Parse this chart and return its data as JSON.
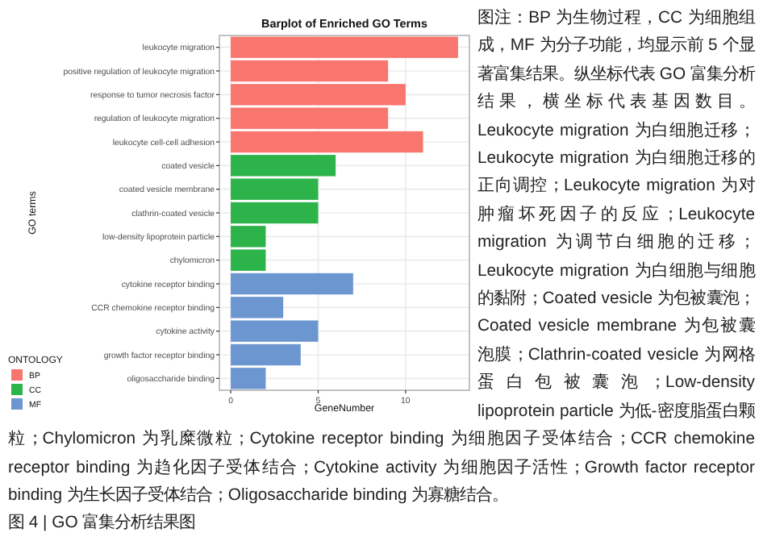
{
  "chart_data": {
    "type": "bar",
    "orientation": "horizontal",
    "title": "Barplot of Enriched GO Terms",
    "xlabel": "GeneNumber",
    "ylabel": "GO terms",
    "legend_title": "ONTOLOGY",
    "categories": [
      "leukocyte migration",
      "positive regulation of leukocyte migration",
      "response to tumor necrosis factor",
      "regulation of leukocyte migration",
      "leukocyte cell-cell adhesion",
      "coated vesicle",
      "coated vesicle membrane",
      "clathrin-coated vesicle",
      "low-density lipoprotein particle",
      "chylomicron",
      "cytokine receptor binding",
      "CCR chemokine receptor binding",
      "cytokine activity",
      "growth factor receptor binding",
      "oligosaccharide binding"
    ],
    "series": [
      {
        "name": "BP",
        "color": "#f8766d",
        "values": [
          13,
          9,
          10,
          9,
          11,
          null,
          null,
          null,
          null,
          null,
          null,
          null,
          null,
          null,
          null
        ]
      },
      {
        "name": "CC",
        "color": "#2cb34a",
        "values": [
          null,
          null,
          null,
          null,
          null,
          6,
          5,
          5,
          2,
          2,
          null,
          null,
          null,
          null,
          null
        ]
      },
      {
        "name": "MF",
        "color": "#6c96d0",
        "values": [
          null,
          null,
          null,
          null,
          null,
          null,
          null,
          null,
          null,
          null,
          7,
          3,
          5,
          4,
          2
        ]
      }
    ],
    "xlim": [
      -0.65,
      13.65
    ],
    "xticks": [
      0,
      5,
      10
    ],
    "grid": true,
    "legend": "bottom left",
    "annotations": [
      "图注：BP 为生物过程，CC 为细胞组成，MF 为分子功能，均显示前 5 个显著富集结果。纵坐标代表 GO 富集分析结果，横坐标代表基因数目。Leukocyte migration 为白细胞迁移；Leukocyte migration 为白细胞迁移的正向调控；Leukocyte migration 为对肿瘤坏死因子的反应；Leukocyte migration 为调节白细胞的迁移；Leukocyte migration 为白细胞与细胞的黏附；Coated vesicle 为包被囊泡；Coated vesicle membrane 为包被囊泡膜；Clathrin-coated vesicle 为网格蛋白包被囊泡；Low-density lipoprotein particle 为低-密度脂蛋白颗粒；Chylomicron 为乳糜微粒；Cytokine receptor binding 为细胞因子受体结合；CCR chemokine receptor binding 为趋化因子受体结合；Cytokine activity 为细胞因子活性；Growth factor receptor binding 为生长因子受体结合；Oligosaccharide binding 为寡糖结合。",
      "图 4 | GO 富集分析结果图"
    ]
  }
}
